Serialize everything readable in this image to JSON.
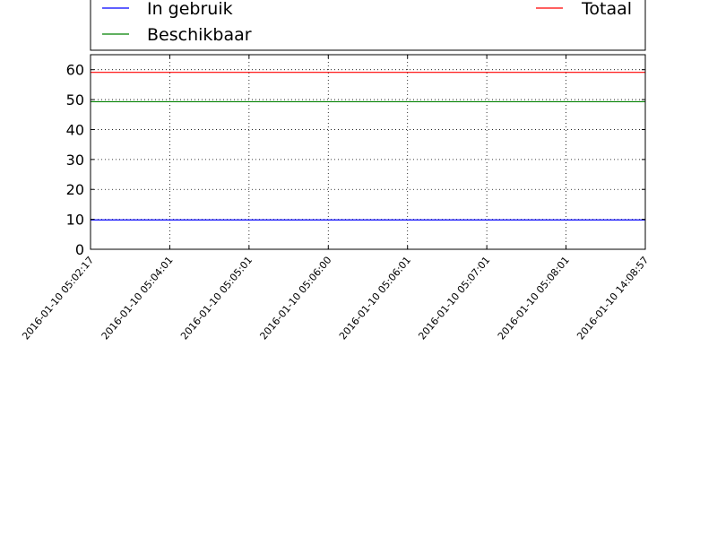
{
  "chart_data": {
    "type": "line",
    "title": "",
    "xlabel": "",
    "ylabel": "",
    "x": [
      "2016-01-10 05:02:17",
      "2016-01-10 05:04:01",
      "2016-01-10 05:05:01",
      "2016-01-10 05:06:00",
      "2016-01-10 05:06:01",
      "2016-01-10 05:07:01",
      "2016-01-10 05:08:01",
      "2016-01-10 14:08:57"
    ],
    "ylim": [
      0,
      65
    ],
    "yticks": [
      0,
      10,
      20,
      30,
      40,
      50,
      60
    ],
    "grid": true,
    "legend_position": "top",
    "series": [
      {
        "name": "In gebruik",
        "color": "#0000ff",
        "values": [
          9.8,
          9.8,
          9.8,
          9.8,
          9.8,
          9.8,
          9.8,
          9.8
        ]
      },
      {
        "name": "Beschikbaar",
        "color": "#008000",
        "values": [
          49.3,
          49.3,
          49.3,
          49.3,
          49.3,
          49.3,
          49.3,
          49.3
        ]
      },
      {
        "name": "Totaal",
        "color": "#ff0000",
        "values": [
          59.1,
          59.1,
          59.1,
          59.1,
          59.1,
          59.1,
          59.1,
          59.1
        ]
      }
    ]
  }
}
